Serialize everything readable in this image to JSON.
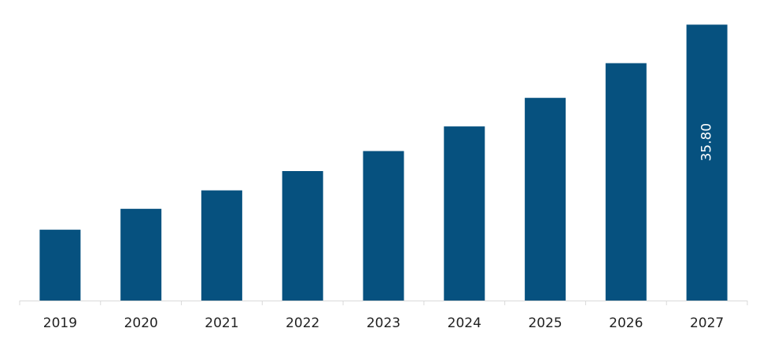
{
  "chart_data": {
    "type": "bar",
    "categories": [
      "2019",
      "2020",
      "2021",
      "2022",
      "2023",
      "2024",
      "2025",
      "2026",
      "2027"
    ],
    "values": [
      9.2,
      11.9,
      14.3,
      16.8,
      19.4,
      22.6,
      26.3,
      30.8,
      35.8
    ],
    "ylim": [
      0,
      39
    ],
    "grid": false,
    "legend": "none",
    "data_labels": [
      {
        "index": 8,
        "text": "35.80"
      }
    ],
    "colors": {
      "bar": "#06517f",
      "axis": "#d9d9d9",
      "tick_text": "#222222",
      "data_label_text": "#ffffff"
    }
  }
}
